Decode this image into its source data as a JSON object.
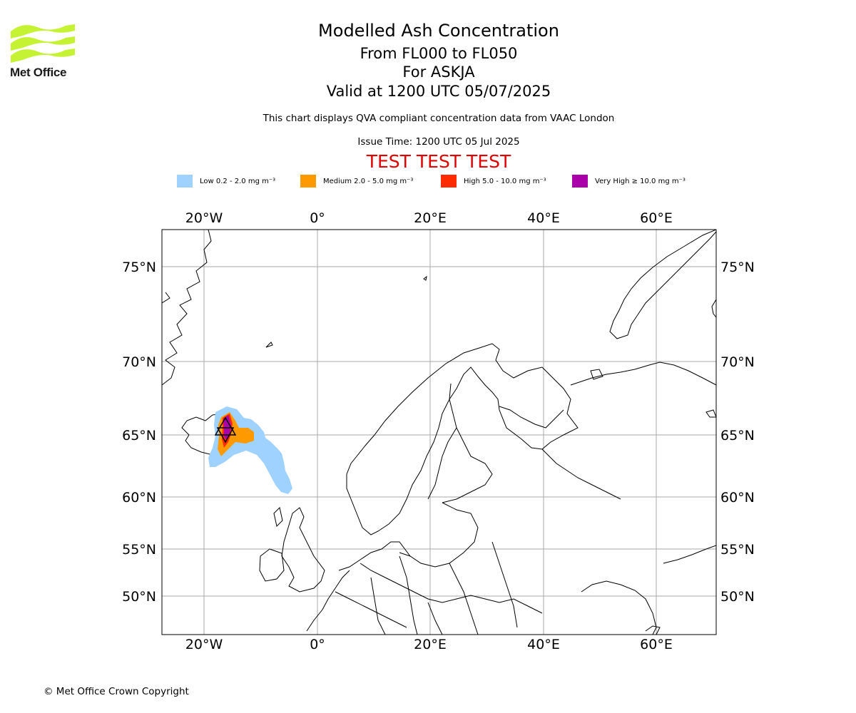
{
  "header": {
    "title": "Modelled Ash Concentration",
    "levels": "From FL000 to FL050",
    "volcano": "For ASKJA",
    "valid": "Valid at 1200 UTC 05/07/2025",
    "subtitle": "This chart displays QVA compliant concentration data from VAAC London",
    "issue_time": "Issue Time: 1200 UTC 05 Jul 2025",
    "test_banner": "TEST TEST TEST"
  },
  "logo": {
    "text": "Met Office"
  },
  "legend": [
    {
      "label": "Low 0.2 - 2.0 mg m⁻³",
      "color": "#a0d2ff"
    },
    {
      "label": "Medium 2.0 - 5.0 mg m⁻³",
      "color": "#ff9900"
    },
    {
      "label": "High 5.0 - 10.0 mg m⁻³",
      "color": "#ff2b00"
    },
    {
      "label": "Very High ≥ 10.0 mg m⁻³",
      "color": "#aa00aa"
    }
  ],
  "map": {
    "lon_labels": [
      "20°W",
      "0°",
      "20°E",
      "40°E",
      "60°E"
    ],
    "lat_labels": [
      "75°N",
      "70°N",
      "65°N",
      "60°N",
      "55°N",
      "50°N"
    ],
    "grid_color": "#aaaaaa"
  },
  "footer": {
    "copyright": "© Met Office Crown Copyright"
  }
}
